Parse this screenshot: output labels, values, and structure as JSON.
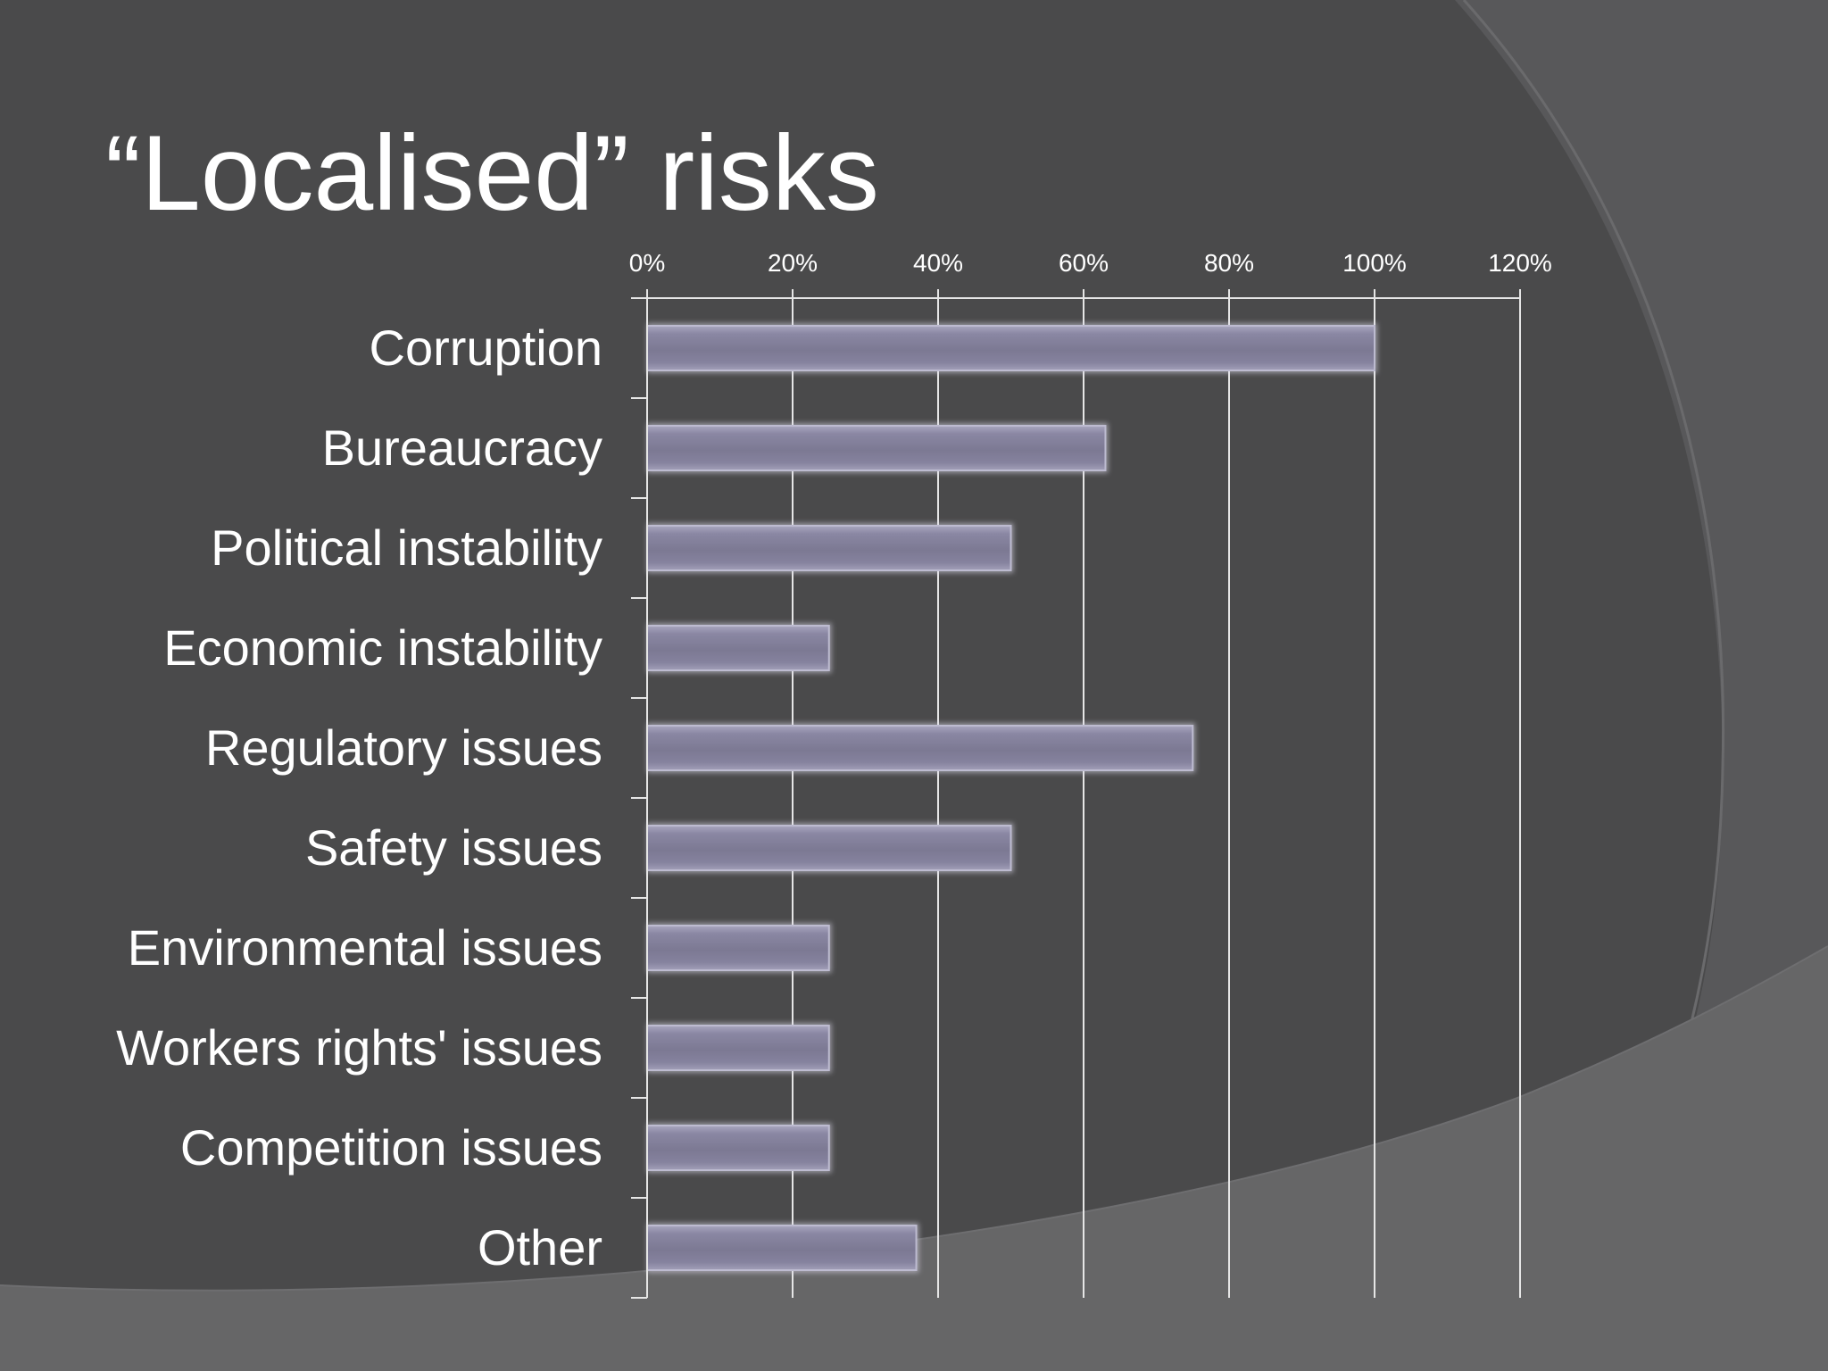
{
  "slide": {
    "title": "“Localised” risks"
  },
  "colors": {
    "background": "#4a4a4b",
    "bar_fill": "#7f7c97",
    "bar_glow": "#d8d6e6",
    "text": "#ffffff",
    "grid": "#e6e6e6"
  },
  "chart_data": {
    "type": "bar",
    "orientation": "horizontal",
    "categories": [
      "Corruption",
      "Bureaucracy",
      "Political instability",
      "Economic instability",
      "Regulatory issues",
      "Safety issues",
      "Environmental issues",
      "Workers rights' issues",
      "Competition issues",
      "Other"
    ],
    "values": [
      100,
      63,
      50,
      25,
      75,
      50,
      25,
      25,
      25,
      37
    ],
    "unit": "%",
    "xlim": [
      0,
      120
    ],
    "x_ticks": [
      "0%",
      "20%",
      "40%",
      "60%",
      "80%",
      "100%",
      "120%"
    ],
    "x_tick_values": [
      0,
      20,
      40,
      60,
      80,
      100,
      120
    ],
    "x_axis_position": "top",
    "grid": true,
    "legend": false
  }
}
